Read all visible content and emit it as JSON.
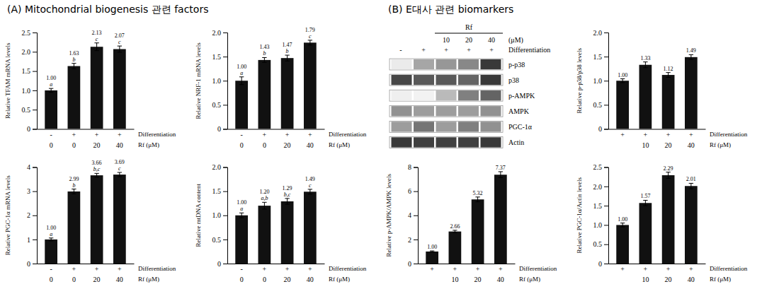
{
  "chart_data": [
    {
      "type": "bar",
      "title": "(A) Mitochondrial biogenesis 관련 factors",
      "ylabel": "Relative TFAM mRNA levels",
      "categories": [
        "-",
        "+",
        "+",
        "+"
      ],
      "category_label": "Differentiation",
      "rf_labels": [
        "0",
        "0",
        "20",
        "40"
      ],
      "rf_label": "Rf (μM)",
      "values": [
        1.0,
        1.63,
        2.13,
        2.07
      ],
      "errors": [
        0.05,
        0.07,
        0.1,
        0.08
      ],
      "sig_labels": [
        "a",
        "b",
        "c",
        "c"
      ],
      "data_labels": true,
      "value_labels": [
        "1.00",
        "1.63",
        "2.13",
        "2.07"
      ],
      "color": "#111111",
      "ylim": [
        0,
        2.5
      ],
      "yticks": [
        0,
        0.5,
        {
          "value": 1,
          "label": "1.0"
        },
        1.5,
        {
          "value": 2,
          "label": "2.0"
        },
        2.5
      ]
    },
    {
      "type": "bar",
      "ylabel": "Relative NRF-1 mRNA levels",
      "categories": [
        "-",
        "+",
        "+",
        "+"
      ],
      "category_label": "Differentiation",
      "rf_labels": [
        "0",
        "0",
        "20",
        "40"
      ],
      "rf_label": "Rf (μM)",
      "values": [
        1.0,
        1.43,
        1.47,
        1.79
      ],
      "errors": [
        0.08,
        0.05,
        0.06,
        0.05
      ],
      "sig_labels": [
        "a",
        "b",
        "b",
        "c"
      ],
      "data_labels": true,
      "value_labels": [
        "1.00",
        "1.43",
        "1.47",
        "1.79"
      ],
      "color": "#111111",
      "ylim": [
        0,
        2
      ],
      "yticks": [
        0,
        0.5,
        {
          "value": 1,
          "label": "1.0"
        },
        1.5,
        {
          "value": 2,
          "label": "2.0"
        }
      ]
    },
    {
      "type": "bar",
      "ylabel": "Relative PGC-1α mRNA levels",
      "categories": [
        "-",
        "+",
        "+",
        "+"
      ],
      "category_label": "Differentiation",
      "rf_labels": [
        "0",
        "0",
        "20",
        "40"
      ],
      "rf_label": "Rf (μM)",
      "values": [
        1.0,
        2.99,
        3.66,
        3.69
      ],
      "errors": [
        0.06,
        0.1,
        0.08,
        0.09
      ],
      "sig_labels": [
        "a",
        "b",
        "b,c",
        "c"
      ],
      "data_labels": true,
      "value_labels": [
        "1.00",
        "2.99",
        "3.66",
        "3.69"
      ],
      "color": "#111111",
      "ylim": [
        0,
        4
      ],
      "yticks": [
        0,
        1,
        2,
        3,
        4
      ]
    },
    {
      "type": "bar",
      "ylabel": "Relative mtDNA content",
      "categories": [
        "-",
        "+",
        "+",
        "+"
      ],
      "category_label": "Differentiation",
      "rf_labels": [
        "0",
        "0",
        "20",
        "40"
      ],
      "rf_label": "Rf (μM)",
      "values": [
        1.0,
        1.2,
        1.29,
        1.49
      ],
      "errors": [
        0.05,
        0.07,
        0.06,
        0.05
      ],
      "sig_labels": [
        "a",
        "a,b",
        "b,c",
        "c"
      ],
      "data_labels": true,
      "value_labels": [
        "1.00",
        "1.20",
        "1.29",
        "1.49"
      ],
      "color": "#111111",
      "ylim": [
        0,
        2
      ],
      "yticks": [
        0,
        0.5,
        {
          "value": 1,
          "label": "1.0"
        },
        1.5,
        {
          "value": 2,
          "label": "2.0"
        }
      ]
    },
    {
      "type": "heatmap",
      "title": "(B) E대사 관련 biomarkers",
      "rows": [
        "p-p38",
        "p38",
        "p-AMPK",
        "AMPK",
        "PGC-1α",
        "Actin"
      ],
      "categories": [
        "-",
        "+",
        "+",
        "+",
        "+"
      ],
      "category_label": "Differentiation",
      "rf_header": "Rf",
      "rf_labels": [
        null,
        null,
        "10",
        "20",
        "40"
      ],
      "rf_unit": "(μM)",
      "cells": [
        [
          0.15,
          0.45,
          0.5,
          0.55,
          0.82
        ],
        [
          0.78,
          0.72,
          0.72,
          0.68,
          0.82
        ],
        [
          0.12,
          0.1,
          0.38,
          0.58,
          0.68
        ],
        [
          0.52,
          0.48,
          0.48,
          0.48,
          0.52
        ],
        [
          0.48,
          0.62,
          0.48,
          0.58,
          0.52
        ],
        [
          0.82,
          0.8,
          0.8,
          0.8,
          0.82
        ]
      ]
    },
    {
      "type": "bar",
      "ylabel": "Relative p-p38/p38 levels",
      "categories": [
        "+",
        "+",
        "+",
        "+"
      ],
      "category_label": "Differentiation",
      "rf_labels": [
        null,
        "10",
        "20",
        "40"
      ],
      "rf_label": "Rf (μM)",
      "values": [
        1.0,
        1.33,
        1.12,
        1.49
      ],
      "errors": [
        0.04,
        0.06,
        0.05,
        0.05
      ],
      "data_labels": true,
      "value_labels": [
        "1.00",
        "1.33",
        "1.12",
        "1.49"
      ],
      "color": "#111111",
      "ylim": [
        0,
        2
      ],
      "yticks": [
        0,
        0.5,
        {
          "value": 1,
          "label": "1.0"
        },
        1.5,
        {
          "value": 2,
          "label": "2.0"
        }
      ]
    },
    {
      "type": "bar",
      "ylabel": "Relative p-AMPK/AMPK levels",
      "categories": [
        "+",
        "+",
        "+",
        "+"
      ],
      "category_label": "Differentiation",
      "rf_labels": [
        null,
        "10",
        "20",
        "40"
      ],
      "rf_label": "Rf (μM)",
      "values": [
        1.0,
        2.66,
        5.32,
        7.37
      ],
      "errors": [
        0.05,
        0.1,
        0.2,
        0.25
      ],
      "data_labels": true,
      "value_labels": [
        "1.00",
        "2.66",
        "5.32",
        "7.37"
      ],
      "color": "#111111",
      "ylim": [
        0,
        8
      ],
      "yticks": [
        0,
        2,
        4,
        6,
        8
      ]
    },
    {
      "type": "bar",
      "ylabel": "Relative PGC-1α/Actin levels",
      "categories": [
        "+",
        "+",
        "+",
        "+"
      ],
      "category_label": "Differentiation",
      "rf_labels": [
        null,
        "10",
        "20",
        "40"
      ],
      "rf_label": "Rf (μM)",
      "values": [
        1.0,
        1.57,
        2.29,
        2.01
      ],
      "errors": [
        0.05,
        0.07,
        0.08,
        0.07
      ],
      "data_labels": true,
      "value_labels": [
        "1.00",
        "1.57",
        "2.29",
        "2.01"
      ],
      "color": "#111111",
      "ylim": [
        0,
        2.5
      ],
      "yticks": [
        0,
        0.5,
        {
          "value": 1,
          "label": "1.0"
        },
        1.5,
        {
          "value": 2,
          "label": "2.0"
        },
        2.5
      ]
    }
  ]
}
